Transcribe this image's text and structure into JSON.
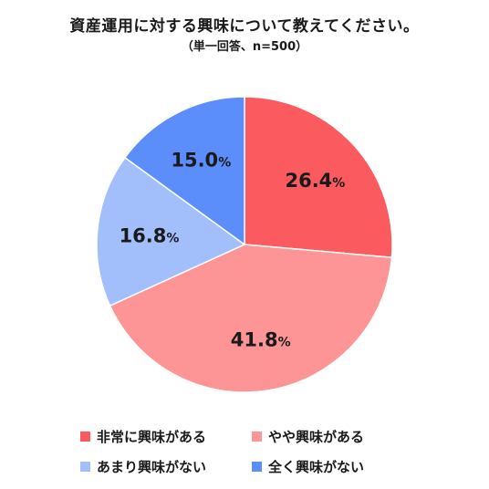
{
  "title": "資産運用に対する興味について教えてください。",
  "subtitle": "（単一回答、n=500）",
  "chart_data": {
    "type": "pie",
    "start_angle": "top",
    "direction": "clockwise",
    "legend_position": "bottom",
    "slices": [
      {
        "name": "非常に興味がある",
        "value": 26.4,
        "label": "26.4%",
        "color": "#fb5b5e"
      },
      {
        "name": "やや興味がある",
        "value": 41.8,
        "label": "41.8%",
        "color": "#fd9495"
      },
      {
        "name": "あまり興味がない",
        "value": 16.8,
        "label": "16.8%",
        "color": "#a2bffc"
      },
      {
        "name": "全く興味がない",
        "value": 15.0,
        "label": "15.0%",
        "color": "#5b8dfb"
      }
    ]
  }
}
